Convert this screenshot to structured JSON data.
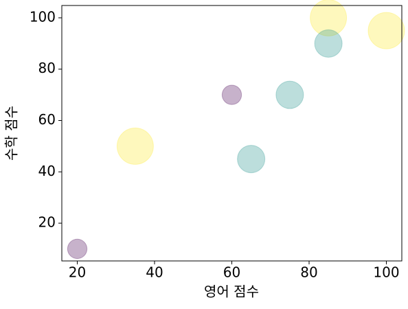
{
  "chart_data": {
    "type": "scatter",
    "xlabel": "영어 점수",
    "ylabel": "수학 점수",
    "x": [
      20,
      35,
      60,
      65,
      75,
      85,
      85,
      100
    ],
    "y": [
      10,
      50,
      70,
      45,
      70,
      100,
      90,
      95
    ],
    "sizes": [
      200,
      700,
      200,
      400,
      400,
      700,
      400,
      700
    ],
    "colors": [
      "#440154",
      "#fde725",
      "#440154",
      "#21918c",
      "#21918c",
      "#fde725",
      "#21918c",
      "#fde725"
    ],
    "alpha": 0.3,
    "xlim": [
      16,
      104
    ],
    "ylim": [
      5.3,
      104.8
    ],
    "xticks": [
      20,
      40,
      60,
      80,
      100
    ],
    "yticks": [
      20,
      40,
      60,
      80,
      100
    ]
  }
}
